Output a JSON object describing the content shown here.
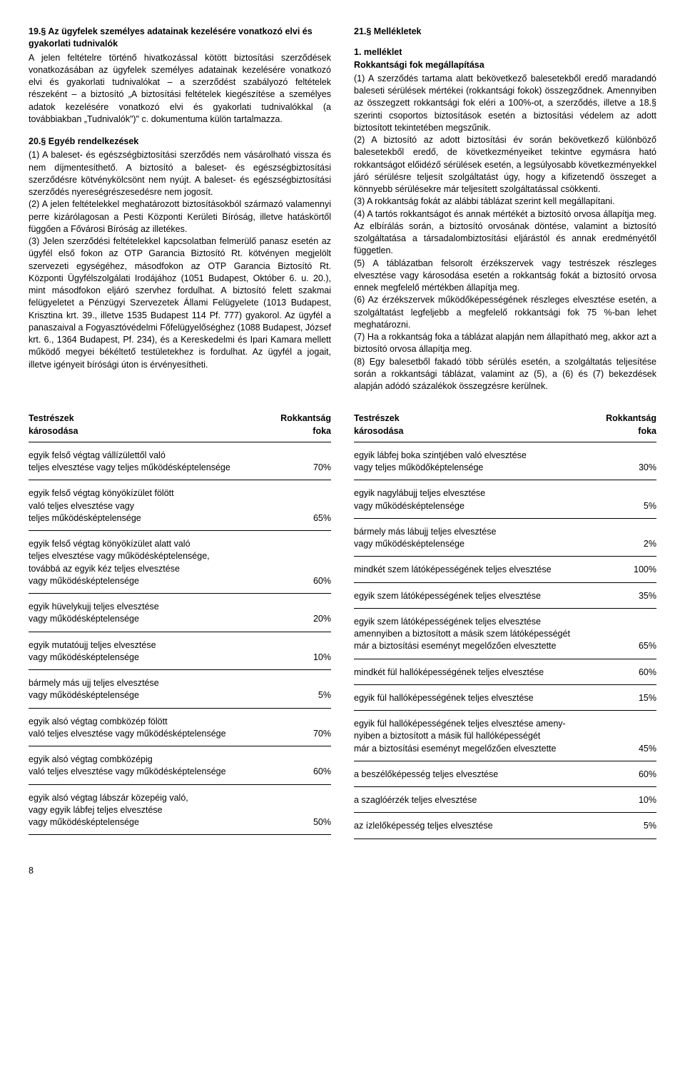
{
  "left": {
    "sec19_title": "19.§ Az ügyfelek személyes adatainak kezelésére vonatkozó elvi és gyakorlati tudnivalók",
    "sec19_body": "A jelen feltételre történő hivatkozással kötött biztosítási szerződések vonatkozásában az ügyfelek személyes adatainak kezelésére vonatkozó elvi és gyakorlati tudnivalókat – a szerződést szabályozó feltételek részeként – a biztosító „A biztosítási feltételek kiegészítése a személyes adatok kezelésére vonatkozó elvi és gyakorlati tudnivalókkal (a továbbiakban „Tudnivalók\")\" c. dokumentuma külön tartalmazza.",
    "sec20_title": "20.§ Egyéb rendelkezések",
    "sec20_p1": "(1) A baleset- és egészségbiztosítási szerződés nem vásárolható vissza és nem díjmentesíthető. A biztosító a baleset- és egészségbiztosítási szerződésre kötvénykölcsönt nem nyújt. A baleset- és egészségbiztosítási szerződés nyereségrészesedésre nem jogosít.",
    "sec20_p2": "(2) A jelen feltételekkel meghatározott biztosításokból származó valamennyi perre kizárólagosan a Pesti Központi Kerületi Bíróság, illetve hatáskörtől függően a Fővárosi Bíróság az illetékes.",
    "sec20_p3": "(3) Jelen szerződési feltételekkel kapcsolatban felmerülő panasz esetén az ügyfél első fokon az OTP Garancia Biztosító Rt. kötvényen megjelölt szervezeti egységéhez, másodfokon az OTP Garancia Biztosító Rt. Központi Ügyfélszolgálati Irodájához (1051 Budapest, Október 6. u. 20.), mint másodfokon eljáró szervhez fordulhat. A biztosító felett szakmai felügyeletet a Pénzügyi Szervezetek Állami Felügyelete (1013 Budapest, Krisztina krt. 39., illetve 1535 Budapest 114 Pf. 777) gyakorol. Az ügyfél a panaszaival a Fogyasztóvédelmi Főfelügyelőséghez (1088 Budapest, József krt. 6., 1364 Budapest, Pf. 234), és a Kereskedelmi és Ipari Kamara mellett működő megyei békéltető testületekhez is fordulhat. Az ügyfél a jogait, illetve igényeit bírósági úton is érvényesítheti."
  },
  "right": {
    "sec21_title": "21.§ Mellékletek",
    "mell1_title": "1. melléklet",
    "mell1_sub": "Rokkantsági fok megállapítása",
    "mell1_p1": "(1) A szerződés tartama alatt bekövetkező balesetekből eredő maradandó baleseti sérülések mértékei (rokkantsági fokok) összegződnek. Amennyiben az összegzett rokkantsági fok eléri a 100%-ot, a szerződés, illetve a 18.§ szerinti csoportos biztosítások esetén a biztosítási védelem az adott biztosított tekintetében megszűnik.",
    "mell1_p2": "(2) A biztosító az adott biztosítási év során bekövetkező különböző balesetekből eredő, de következményeiket tekintve egymásra ható rokkantságot előidéző sérülések esetén, a legsúlyosabb következményekkel járó sérülésre teljesít szolgáltatást úgy, hogy a kifizetendő összeget a könnyebb sérülésekre már teljesített szolgáltatással csökkenti.",
    "mell1_p3": "(3) A rokkantság fokát az alábbi táblázat szerint kell megállapítani.",
    "mell1_p4": "(4) A tartós rokkantságot és annak mértékét a biztosító orvosa állapítja meg. Az elbírálás során, a biztosító orvosának döntése, valamint a biztosító szolgáltatása a társadalombiztosítási eljárástól és annak eredményétől független.",
    "mell1_p5": "(5) A táblázatban felsorolt érzékszervek vagy testrészek részleges elvesztése vagy károsodása esetén a rokkantság fokát a biztosító orvosa ennek megfelelő mértékben állapítja meg.",
    "mell1_p6": "(6) Az érzékszervek működőképességének részleges elvesztése esetén, a szolgáltatást legfeljebb a megfelelő rokkantsági fok 75 %-ban lehet meghatározni.",
    "mell1_p7": "(7) Ha a rokkantság foka a táblázat alapján nem állapítható meg, akkor azt a biztosító orvosa állapítja meg.",
    "mell1_p8": "(8) Egy balesetből fakadó több sérülés esetén, a szolgáltatás teljesítése során a rokkantsági táblázat, valamint az (5), a (6) és (7) bekezdések alapján adódó százalékok összegzésre kerülnek."
  },
  "table_header": {
    "left1": "Testrészek",
    "left2": "károsodása",
    "right1": "Rokkantság",
    "right2": "foka"
  },
  "table_left": [
    {
      "label": "egyik felső végtag vállízülettől való\nteljes elvesztése vagy teljes működésképtelensége",
      "value": "70%"
    },
    {
      "label": "egyik felső végtag könyökízület fölött\nvaló teljes elvesztése vagy\nteljes működésképtelensége",
      "value": "65%"
    },
    {
      "label": "egyik felső végtag könyökízület alatt való\nteljes elvesztése vagy működésképtelensége,\ntovábbá az egyik kéz teljes elvesztése\nvagy működésképtelensége",
      "value": "60%"
    },
    {
      "label": "egyik hüvelykujj teljes elvesztése\nvagy működésképtelensége",
      "value": "20%"
    },
    {
      "label": "egyik mutatóujj teljes elvesztése\nvagy működésképtelensége",
      "value": "10%"
    },
    {
      "label": "bármely más ujj teljes elvesztése\nvagy működésképtelensége",
      "value": "5%"
    },
    {
      "label": "egyik alsó végtag combközép fölött\nvaló teljes elvesztése vagy működésképtelensége",
      "value": "70%"
    },
    {
      "label": "egyik alsó végtag combközépig\nvaló teljes elvesztése vagy működésképtelensége",
      "value": "60%"
    },
    {
      "label": "egyik alsó végtag lábszár közepéig való,\nvagy egyik lábfej teljes elvesztése\nvagy működésképtelensége",
      "value": "50%"
    }
  ],
  "table_right": [
    {
      "label": "egyik lábfej boka szintjében való elvesztése\nvagy teljes működőképtelensége",
      "value": "30%"
    },
    {
      "label": "egyik nagylábujj teljes elvesztése\nvagy működésképtelensége",
      "value": "5%"
    },
    {
      "label": "bármely más lábujj teljes elvesztése\nvagy működésképtelensége",
      "value": "2%"
    },
    {
      "label": "mindkét szem látóképességének teljes elvesztése",
      "value": "100%"
    },
    {
      "label": "egyik szem látóképességének teljes elvesztése",
      "value": "35%"
    },
    {
      "label": "egyik szem látóképességének teljes elvesztése\namennyiben a biztosított a másik szem látóképességét\nmár a biztosítási eseményt megelőzően elvesztette",
      "value": "65%"
    },
    {
      "label": "mindkét fül hallóképességének teljes elvesztése",
      "value": "60%"
    },
    {
      "label": "egyik fül hallóképességének teljes elvesztése",
      "value": "15%"
    },
    {
      "label": "egyik fül hallóképességének teljes elvesztése ameny-\nnyiben a biztosított a másik fül hallóképességét\nmár a biztosítási eseményt megelőzően elvesztette",
      "value": "45%"
    },
    {
      "label": "a beszélőképesség teljes elvesztése",
      "value": "60%"
    },
    {
      "label": "a szaglóérzék teljes elvesztése",
      "value": "10%"
    },
    {
      "label": "az ízlelőképesség teljes elvesztése",
      "value": "5%"
    }
  ],
  "page_number": "8"
}
